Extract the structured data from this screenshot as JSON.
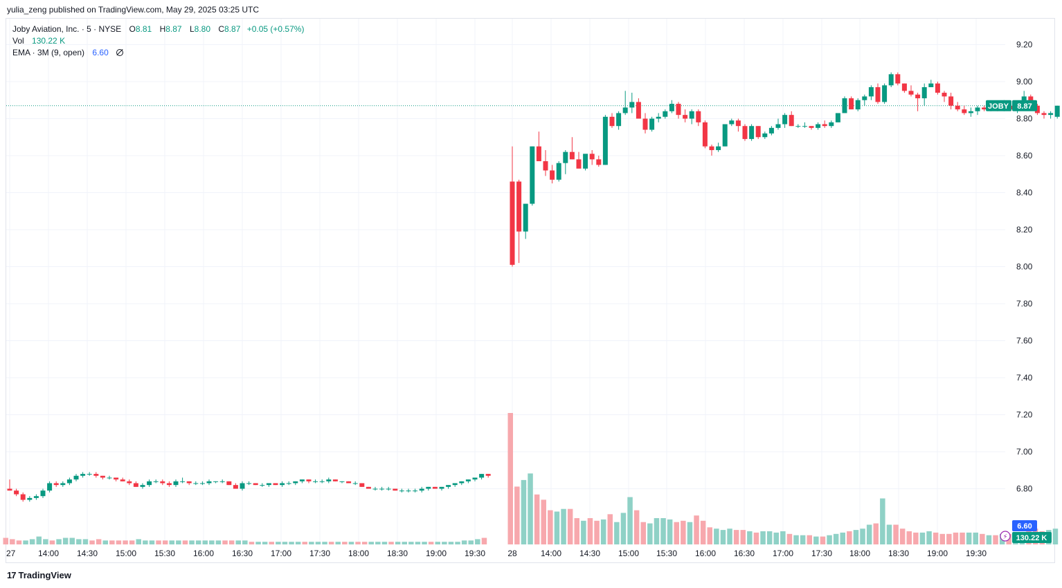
{
  "publisher_line": "yulia_zeng published on TradingView.com, May 29, 2025 03:25 UTC",
  "legend": {
    "symbol": "Joby Aviation, Inc. · 5 · NYSE",
    "o_label": "O",
    "o": "8.81",
    "h_label": "H",
    "h": "8.87",
    "l_label": "L",
    "l": "8.80",
    "c_label": "C",
    "c": "8.87",
    "change": "+0.05 (+0.57%)",
    "vol_label": "Vol",
    "vol": "130.22 K",
    "ema_label": "EMA · 3M (9, open)",
    "ema": "6.60"
  },
  "branding": "TradingView",
  "tags": {
    "ticker": "JOBY",
    "last_price": "8.87",
    "ema_value": "6.60",
    "vol_value": "130.22 K"
  },
  "colors": {
    "up": "#089981",
    "down": "#f23645",
    "vol_up": "#8fd1c6",
    "vol_down": "#f7a8ad",
    "ema": "#2962ff"
  },
  "chart_data": {
    "type": "candlestick",
    "y_axis": {
      "ticks": [
        "9.20",
        "9.00",
        "8.80",
        "8.60",
        "8.40",
        "8.20",
        "8.00",
        "7.80",
        "7.60",
        "7.40",
        "7.20",
        "7.00",
        "6.80"
      ],
      "range": [
        6.7,
        9.3
      ]
    },
    "x_axis": {
      "ticks": [
        "27",
        "14:00",
        "14:30",
        "15:00",
        "15:30",
        "16:00",
        "16:30",
        "17:00",
        "17:30",
        "18:00",
        "18:30",
        "19:00",
        "19:30",
        "28",
        "14:00",
        "14:30",
        "15:00",
        "15:30",
        "16:00",
        "16:30",
        "17:00",
        "17:30",
        "18:00",
        "18:30",
        "19:00",
        "19:30"
      ]
    },
    "last_price": 8.87,
    "day1_candles": [
      [
        6.8,
        6.85,
        6.79,
        6.79
      ],
      [
        6.79,
        6.8,
        6.76,
        6.77
      ],
      [
        6.77,
        6.78,
        6.73,
        6.74
      ],
      [
        6.74,
        6.76,
        6.73,
        6.75
      ],
      [
        6.75,
        6.77,
        6.74,
        6.76
      ],
      [
        6.76,
        6.8,
        6.75,
        6.79
      ],
      [
        6.79,
        6.84,
        6.78,
        6.83
      ],
      [
        6.83,
        6.84,
        6.81,
        6.82
      ],
      [
        6.82,
        6.84,
        6.81,
        6.83
      ],
      [
        6.83,
        6.86,
        6.82,
        6.85
      ],
      [
        6.85,
        6.88,
        6.84,
        6.87
      ],
      [
        6.87,
        6.89,
        6.86,
        6.88
      ],
      [
        6.88,
        6.89,
        6.87,
        6.88
      ],
      [
        6.88,
        6.89,
        6.86,
        6.87
      ],
      [
        6.87,
        6.87,
        6.85,
        6.86
      ],
      [
        6.86,
        6.87,
        6.85,
        6.86
      ],
      [
        6.86,
        6.86,
        6.84,
        6.85
      ],
      [
        6.85,
        6.86,
        6.84,
        6.84
      ],
      [
        6.84,
        6.85,
        6.82,
        6.83
      ],
      [
        6.83,
        6.84,
        6.81,
        6.81
      ],
      [
        6.81,
        6.83,
        6.8,
        6.82
      ],
      [
        6.82,
        6.85,
        6.81,
        6.84
      ],
      [
        6.84,
        6.85,
        6.83,
        6.84
      ],
      [
        6.84,
        6.85,
        6.82,
        6.83
      ],
      [
        6.83,
        6.84,
        6.81,
        6.82
      ],
      [
        6.82,
        6.85,
        6.81,
        6.84
      ],
      [
        6.84,
        6.86,
        6.83,
        6.84
      ],
      [
        6.84,
        6.84,
        6.82,
        6.83
      ],
      [
        6.83,
        6.84,
        6.82,
        6.83
      ],
      [
        6.83,
        6.84,
        6.82,
        6.83
      ],
      [
        6.83,
        6.85,
        6.82,
        6.84
      ],
      [
        6.84,
        6.84,
        6.83,
        6.84
      ],
      [
        6.84,
        6.85,
        6.83,
        6.84
      ],
      [
        6.84,
        6.84,
        6.82,
        6.82
      ],
      [
        6.82,
        6.83,
        6.8,
        6.8
      ],
      [
        6.8,
        6.84,
        6.79,
        6.83
      ],
      [
        6.83,
        6.84,
        6.82,
        6.83
      ],
      [
        6.83,
        6.83,
        6.82,
        6.82
      ],
      [
        6.82,
        6.83,
        6.81,
        6.82
      ],
      [
        6.82,
        6.83,
        6.81,
        6.83
      ],
      [
        6.83,
        6.83,
        6.82,
        6.82
      ],
      [
        6.82,
        6.84,
        6.81,
        6.83
      ],
      [
        6.83,
        6.84,
        6.82,
        6.83
      ],
      [
        6.83,
        6.84,
        6.82,
        6.84
      ],
      [
        6.84,
        6.85,
        6.83,
        6.85
      ],
      [
        6.85,
        6.85,
        6.83,
        6.84
      ],
      [
        6.84,
        6.85,
        6.83,
        6.84
      ],
      [
        6.84,
        6.85,
        6.83,
        6.84
      ],
      [
        6.84,
        6.86,
        6.83,
        6.85
      ],
      [
        6.85,
        6.85,
        6.84,
        6.84
      ],
      [
        6.84,
        6.84,
        6.83,
        6.84
      ],
      [
        6.84,
        6.84,
        6.83,
        6.83
      ],
      [
        6.83,
        6.84,
        6.82,
        6.83
      ],
      [
        6.83,
        6.83,
        6.81,
        6.81
      ],
      [
        6.81,
        6.81,
        6.8,
        6.8
      ],
      [
        6.8,
        6.81,
        6.79,
        6.8
      ],
      [
        6.8,
        6.81,
        6.79,
        6.8
      ],
      [
        6.8,
        6.81,
        6.79,
        6.8
      ],
      [
        6.8,
        6.8,
        6.79,
        6.79
      ],
      [
        6.79,
        6.8,
        6.78,
        6.79
      ],
      [
        6.79,
        6.8,
        6.78,
        6.79
      ],
      [
        6.79,
        6.8,
        6.78,
        6.79
      ],
      [
        6.79,
        6.81,
        6.78,
        6.8
      ],
      [
        6.8,
        6.81,
        6.79,
        6.81
      ],
      [
        6.81,
        6.81,
        6.8,
        6.8
      ],
      [
        6.8,
        6.81,
        6.79,
        6.81
      ],
      [
        6.81,
        6.82,
        6.8,
        6.82
      ],
      [
        6.82,
        6.83,
        6.81,
        6.83
      ],
      [
        6.83,
        6.84,
        6.82,
        6.84
      ],
      [
        6.84,
        6.85,
        6.83,
        6.85
      ],
      [
        6.85,
        6.86,
        6.84,
        6.86
      ],
      [
        6.86,
        6.88,
        6.85,
        6.88
      ],
      [
        6.88,
        6.88,
        6.86,
        6.87
      ]
    ],
    "day2_candles": [
      [
        8.46,
        8.65,
        8.0,
        8.01
      ],
      [
        8.46,
        8.47,
        8.02,
        8.19
      ],
      [
        8.19,
        8.34,
        8.15,
        8.34
      ],
      [
        8.34,
        8.65,
        8.33,
        8.65
      ],
      [
        8.65,
        8.73,
        8.58,
        8.57
      ],
      [
        8.57,
        8.63,
        8.49,
        8.52
      ],
      [
        8.52,
        8.55,
        8.45,
        8.47
      ],
      [
        8.47,
        8.57,
        8.46,
        8.56
      ],
      [
        8.56,
        8.63,
        8.5,
        8.62
      ],
      [
        8.62,
        8.7,
        8.58,
        8.58
      ],
      [
        8.58,
        8.62,
        8.54,
        8.53
      ],
      [
        8.53,
        8.59,
        8.52,
        8.61
      ],
      [
        8.61,
        8.63,
        8.55,
        8.58
      ],
      [
        8.58,
        8.6,
        8.54,
        8.55
      ],
      [
        8.55,
        8.82,
        8.55,
        8.81
      ],
      [
        8.81,
        8.83,
        8.75,
        8.76
      ],
      [
        8.76,
        8.84,
        8.74,
        8.83
      ],
      [
        8.83,
        8.95,
        8.82,
        8.86
      ],
      [
        8.86,
        8.94,
        8.83,
        8.89
      ],
      [
        8.89,
        8.91,
        8.8,
        8.8
      ],
      [
        8.8,
        8.83,
        8.72,
        8.74
      ],
      [
        8.74,
        8.81,
        8.73,
        8.8
      ],
      [
        8.8,
        8.83,
        8.78,
        8.81
      ],
      [
        8.81,
        8.85,
        8.8,
        8.84
      ],
      [
        8.84,
        8.9,
        8.83,
        8.88
      ],
      [
        8.88,
        8.89,
        8.8,
        8.82
      ],
      [
        8.82,
        8.85,
        8.78,
        8.8
      ],
      [
        8.8,
        8.85,
        8.77,
        8.84
      ],
      [
        8.84,
        8.85,
        8.76,
        8.78
      ],
      [
        8.78,
        8.79,
        8.64,
        8.65
      ],
      [
        8.65,
        8.66,
        8.6,
        8.63
      ],
      [
        8.63,
        8.67,
        8.62,
        8.65
      ],
      [
        8.65,
        8.77,
        8.65,
        8.77
      ],
      [
        8.77,
        8.8,
        8.76,
        8.79
      ],
      [
        8.79,
        8.8,
        8.73,
        8.76
      ],
      [
        8.76,
        8.77,
        8.68,
        8.69
      ],
      [
        8.69,
        8.77,
        8.68,
        8.76
      ],
      [
        8.76,
        8.76,
        8.69,
        8.7
      ],
      [
        8.7,
        8.73,
        8.69,
        8.72
      ],
      [
        8.72,
        8.76,
        8.71,
        8.75
      ],
      [
        8.75,
        8.8,
        8.74,
        8.77
      ],
      [
        8.77,
        8.83,
        8.75,
        8.82
      ],
      [
        8.82,
        8.84,
        8.76,
        8.76
      ],
      [
        8.76,
        8.77,
        8.75,
        8.76
      ],
      [
        8.76,
        8.78,
        8.75,
        8.76
      ],
      [
        8.76,
        8.76,
        8.74,
        8.75
      ],
      [
        8.75,
        8.78,
        8.74,
        8.77
      ],
      [
        8.77,
        8.79,
        8.75,
        8.76
      ],
      [
        8.76,
        8.79,
        8.75,
        8.78
      ],
      [
        8.78,
        8.83,
        8.78,
        8.83
      ],
      [
        8.83,
        8.92,
        8.83,
        8.91
      ],
      [
        8.91,
        8.92,
        8.85,
        8.85
      ],
      [
        8.85,
        8.91,
        8.84,
        8.9
      ],
      [
        8.9,
        8.93,
        8.87,
        8.92
      ],
      [
        8.92,
        8.98,
        8.9,
        8.97
      ],
      [
        8.97,
        8.99,
        8.88,
        8.89
      ],
      [
        8.89,
        8.99,
        8.88,
        8.98
      ],
      [
        8.98,
        9.05,
        8.97,
        9.04
      ],
      [
        9.04,
        9.05,
        8.98,
        8.99
      ],
      [
        8.99,
        8.99,
        8.94,
        8.95
      ],
      [
        8.95,
        8.98,
        8.92,
        8.93
      ],
      [
        8.93,
        8.94,
        8.84,
        8.91
      ],
      [
        8.91,
        8.99,
        8.87,
        8.97
      ],
      [
        8.97,
        9.01,
        8.97,
        8.99
      ],
      [
        8.99,
        9.0,
        8.93,
        8.94
      ],
      [
        8.94,
        8.95,
        8.89,
        8.92
      ],
      [
        8.92,
        8.94,
        8.85,
        8.87
      ],
      [
        8.87,
        8.89,
        8.84,
        8.85
      ],
      [
        8.85,
        8.87,
        8.82,
        8.83
      ],
      [
        8.83,
        8.86,
        8.81,
        8.84
      ],
      [
        8.84,
        8.87,
        8.82,
        8.86
      ],
      [
        8.86,
        8.87,
        8.84,
        8.85
      ],
      [
        8.85,
        8.89,
        8.84,
        8.86
      ],
      [
        8.86,
        8.87,
        8.84,
        8.85
      ],
      [
        8.85,
        8.9,
        8.84,
        8.87
      ],
      [
        8.87,
        8.88,
        8.84,
        8.85
      ],
      [
        8.85,
        8.87,
        8.83,
        8.86
      ],
      [
        8.86,
        8.95,
        8.85,
        8.92
      ],
      [
        8.92,
        8.93,
        8.86,
        8.87
      ],
      [
        8.87,
        8.88,
        8.82,
        8.83
      ],
      [
        8.83,
        8.84,
        8.8,
        8.82
      ],
      [
        8.82,
        8.84,
        8.8,
        8.83
      ],
      [
        8.81,
        8.87,
        8.8,
        8.87
      ]
    ],
    "volume_day1": [
      5,
      4,
      3,
      3,
      4,
      6,
      4,
      3,
      4,
      5,
      5,
      4,
      4,
      3,
      4,
      3,
      3,
      3,
      3,
      3,
      4,
      3,
      3,
      3,
      3,
      3,
      3,
      3,
      3,
      3,
      3,
      3,
      3,
      3,
      3,
      3,
      3,
      2,
      2,
      2,
      2,
      2,
      2,
      2,
      2,
      2,
      2,
      2,
      2,
      2,
      2,
      2,
      2,
      2,
      2,
      2,
      2,
      2,
      2,
      2,
      2,
      2,
      2,
      2,
      2,
      2,
      2,
      2,
      2,
      3,
      3,
      4,
      5
    ],
    "volume_day2": [
      100,
      44,
      49,
      54,
      38,
      34,
      26,
      25,
      27,
      27,
      20,
      18,
      20,
      18,
      19,
      23,
      17,
      24,
      36,
      26,
      17,
      16,
      20,
      20,
      19,
      17,
      18,
      17,
      22,
      18,
      13,
      12,
      11,
      12,
      11,
      11,
      10,
      9,
      10,
      10,
      9,
      10,
      8,
      7,
      7,
      7,
      6,
      6,
      7,
      8,
      9,
      10,
      11,
      12,
      15,
      16,
      35,
      15,
      15,
      12,
      10,
      9,
      9,
      10,
      9,
      8,
      8,
      9,
      9,
      9,
      9,
      8,
      7,
      7,
      8,
      8,
      8,
      9,
      11,
      12,
      10,
      11,
      12
    ]
  }
}
